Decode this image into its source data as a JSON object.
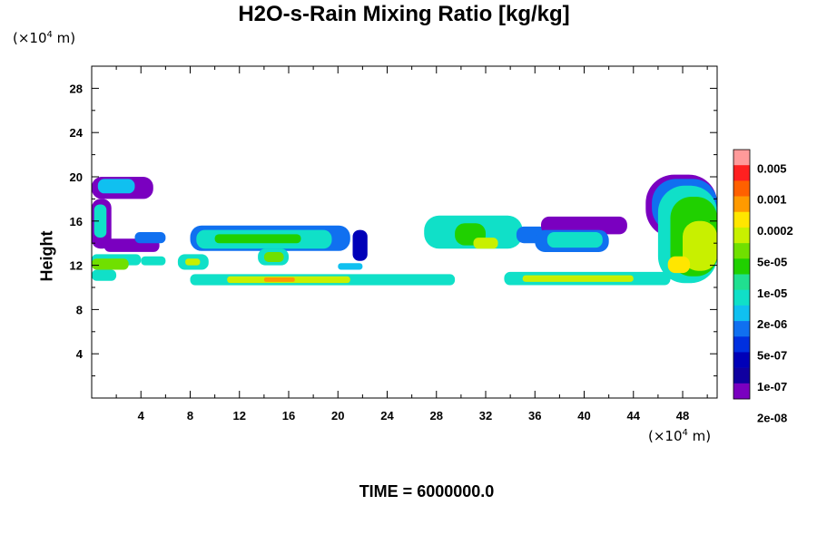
{
  "chart_data": {
    "type": "heatmap",
    "title": "H2O-s-Rain Mixing Ratio [kg/kg]",
    "xlabel": "",
    "ylabel": "Height",
    "x_unit_prefix": "(×10",
    "x_unit_exp": "4",
    "x_unit_suffix": " m)",
    "y_unit_prefix": "(×10",
    "y_unit_exp": "4",
    "y_unit_suffix": " m)",
    "xlim": [
      0,
      50.8
    ],
    "ylim": [
      0,
      30
    ],
    "x_ticks": [
      4,
      8,
      12,
      16,
      20,
      24,
      28,
      32,
      36,
      40,
      44,
      48
    ],
    "y_ticks": [
      4,
      8,
      12,
      16,
      20,
      24,
      28
    ],
    "x_tick_labels": [
      "4",
      "8",
      "12",
      "16",
      "20",
      "24",
      "28",
      "32",
      "36",
      "40",
      "44",
      "48"
    ],
    "y_tick_labels": [
      "4",
      "8",
      "12",
      "16",
      "20",
      "24",
      "28"
    ],
    "colorbar": {
      "colors": [
        "#ff9a9a",
        "#ff2020",
        "#ff6000",
        "#ff9a00",
        "#ffe600",
        "#c8f000",
        "#70e000",
        "#20d000",
        "#20e090",
        "#10e0c8",
        "#10c0f0",
        "#1070f0",
        "#0030e0",
        "#0000b8",
        "#1000a0",
        "#7a00c0"
      ],
      "labels": [
        "0.005",
        "0.001",
        "0.0002",
        "5e-05",
        "1e-05",
        "2e-06",
        "5e-07",
        "1e-07",
        "2e-08"
      ]
    },
    "regions": [
      {
        "level": 15,
        "x": [
          0,
          5
        ],
        "y": [
          18,
          20
        ]
      },
      {
        "level": 10,
        "x": [
          0.5,
          3.5
        ],
        "y": [
          18.5,
          19.8
        ]
      },
      {
        "level": 15,
        "x": [
          0,
          1.6
        ],
        "y": [
          13.5,
          18
        ]
      },
      {
        "level": 9,
        "x": [
          0.2,
          1.2
        ],
        "y": [
          14.5,
          17.5
        ]
      },
      {
        "level": 15,
        "x": [
          1,
          5.5
        ],
        "y": [
          13.2,
          14.4
        ]
      },
      {
        "level": 9,
        "x": [
          0,
          4
        ],
        "y": [
          12,
          13
        ]
      },
      {
        "level": 6,
        "x": [
          0,
          3
        ],
        "y": [
          11.6,
          12.6
        ]
      },
      {
        "level": 9,
        "x": [
          4,
          6
        ],
        "y": [
          12,
          12.8
        ]
      },
      {
        "level": 9,
        "x": [
          0,
          2
        ],
        "y": [
          10.6,
          11.6
        ]
      },
      {
        "level": 11,
        "x": [
          3.5,
          6
        ],
        "y": [
          14,
          15
        ]
      },
      {
        "level": 9,
        "x": [
          7,
          9.5
        ],
        "y": [
          11.6,
          13
        ]
      },
      {
        "level": 5,
        "x": [
          7.6,
          8.8
        ],
        "y": [
          12,
          12.6
        ]
      },
      {
        "level": 11,
        "x": [
          8,
          21
        ],
        "y": [
          13.3,
          15.6
        ]
      },
      {
        "level": 9,
        "x": [
          8.5,
          19.5
        ],
        "y": [
          13.5,
          15.2
        ]
      },
      {
        "level": 7,
        "x": [
          10,
          17
        ],
        "y": [
          14,
          14.8
        ]
      },
      {
        "level": 9,
        "x": [
          13.5,
          16
        ],
        "y": [
          12,
          13.5
        ]
      },
      {
        "level": 6,
        "x": [
          14,
          15.6
        ],
        "y": [
          12.3,
          13.2
        ]
      },
      {
        "level": 13,
        "x": [
          21.2,
          22.4
        ],
        "y": [
          12.4,
          15.2
        ]
      },
      {
        "level": 10,
        "x": [
          20,
          22
        ],
        "y": [
          11.6,
          12.2
        ]
      },
      {
        "level": 9,
        "x": [
          8,
          29.5
        ],
        "y": [
          10.2,
          11.2
        ]
      },
      {
        "level": 5,
        "x": [
          11,
          21
        ],
        "y": [
          10.4,
          11
        ]
      },
      {
        "level": 3,
        "x": [
          14,
          16.5
        ],
        "y": [
          10.5,
          10.9
        ]
      },
      {
        "level": 9,
        "x": [
          27,
          35
        ],
        "y": [
          13.5,
          16.5
        ]
      },
      {
        "level": 7,
        "x": [
          29.5,
          32
        ],
        "y": [
          13.8,
          15.8
        ]
      },
      {
        "level": 5,
        "x": [
          31,
          33
        ],
        "y": [
          13.5,
          14.5
        ]
      },
      {
        "level": 11,
        "x": [
          34.5,
          37
        ],
        "y": [
          14,
          15.5
        ]
      },
      {
        "level": 15,
        "x": [
          36.5,
          43.5
        ],
        "y": [
          14.8,
          16.4
        ]
      },
      {
        "level": 11,
        "x": [
          36,
          42
        ],
        "y": [
          13.2,
          15.2
        ]
      },
      {
        "level": 9,
        "x": [
          37,
          41.5
        ],
        "y": [
          13.6,
          15
        ]
      },
      {
        "level": 9,
        "x": [
          33.5,
          47
        ],
        "y": [
          10.2,
          11.4
        ]
      },
      {
        "level": 5,
        "x": [
          35,
          44
        ],
        "y": [
          10.5,
          11.1
        ]
      },
      {
        "level": 15,
        "x": [
          45,
          50.8
        ],
        "y": [
          14.5,
          20.2
        ]
      },
      {
        "level": 11,
        "x": [
          45.5,
          50.8
        ],
        "y": [
          15,
          19.8
        ]
      },
      {
        "level": 9,
        "x": [
          46,
          50.8
        ],
        "y": [
          10.4,
          19.2
        ]
      },
      {
        "level": 7,
        "x": [
          47,
          50.8
        ],
        "y": [
          11,
          18.2
        ]
      },
      {
        "level": 5,
        "x": [
          48,
          50.8
        ],
        "y": [
          11.5,
          16
        ]
      },
      {
        "level": 4,
        "x": [
          46.8,
          48.6
        ],
        "y": [
          11.3,
          12.8
        ]
      }
    ]
  },
  "caption": {
    "time_text": "TIME = 6000000.0"
  }
}
